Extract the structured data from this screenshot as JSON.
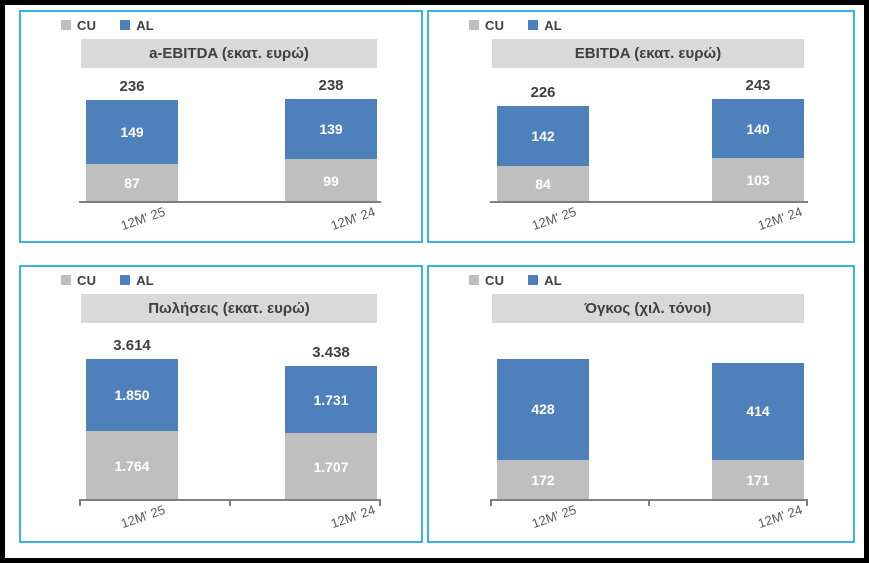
{
  "legend": {
    "cu": "CU",
    "al": "AL"
  },
  "colors": {
    "cu_series": "#BFBFBF",
    "al_series": "#4E80BC",
    "panel_border": "#38B3E8",
    "title_band": "#D9D9D9",
    "title_text": "#3F3F3F",
    "total_label": "#404040",
    "segment_label": "#FFFFFF",
    "axis_line": "#7F7F7F",
    "category_label": "#595959",
    "frame_border": "#000000",
    "background": "#FFFFFF"
  },
  "chart_data": [
    {
      "type": "bar",
      "stacked": true,
      "title": "a-EBITDA (εκατ. ευρώ)",
      "categories": [
        "12M' 25",
        "12M' 24"
      ],
      "series": [
        {
          "name": "CU",
          "values": [
            87,
            99
          ]
        },
        {
          "name": "AL",
          "values": [
            149,
            139
          ]
        }
      ],
      "segment_labels": {
        "cu": [
          "87",
          "99"
        ],
        "al": [
          "149",
          "139"
        ]
      },
      "total_labels": [
        "236",
        "238"
      ],
      "show_totals": true,
      "axis_ticks": false,
      "legend_position": "top-left",
      "grid": false
    },
    {
      "type": "bar",
      "stacked": true,
      "title": "EBITDA (εκατ. ευρώ)",
      "categories": [
        "12M' 25",
        "12M' 24"
      ],
      "series": [
        {
          "name": "CU",
          "values": [
            84,
            103
          ]
        },
        {
          "name": "AL",
          "values": [
            142,
            140
          ]
        }
      ],
      "segment_labels": {
        "cu": [
          "84",
          "103"
        ],
        "al": [
          "142",
          "140"
        ]
      },
      "total_labels": [
        "226",
        "243"
      ],
      "show_totals": true,
      "axis_ticks": false,
      "legend_position": "top-left",
      "grid": false
    },
    {
      "type": "bar",
      "stacked": true,
      "title": "Πωλήσεις (εκατ. ευρώ)",
      "categories": [
        "12M' 25",
        "12M' 24"
      ],
      "series": [
        {
          "name": "CU",
          "values": [
            1764,
            1707
          ]
        },
        {
          "name": "AL",
          "values": [
            1850,
            1731
          ]
        }
      ],
      "segment_labels": {
        "cu": [
          "1.764",
          "1.707"
        ],
        "al": [
          "1.850",
          "1.731"
        ]
      },
      "total_labels": [
        "3.614",
        "3.438"
      ],
      "show_totals": true,
      "axis_ticks": true,
      "legend_position": "top-left",
      "grid": false
    },
    {
      "type": "bar",
      "stacked": true,
      "title": "Όγκος (χιλ. τόνοι)",
      "categories": [
        "12M' 25",
        "12M' 24"
      ],
      "series": [
        {
          "name": "CU",
          "values": [
            172,
            171
          ]
        },
        {
          "name": "AL",
          "values": [
            428,
            414
          ]
        }
      ],
      "segment_labels": {
        "cu": [
          "172",
          "171"
        ],
        "al": [
          "428",
          "414"
        ]
      },
      "show_totals": false,
      "axis_ticks": true,
      "legend_position": "top-left",
      "grid": false
    }
  ]
}
